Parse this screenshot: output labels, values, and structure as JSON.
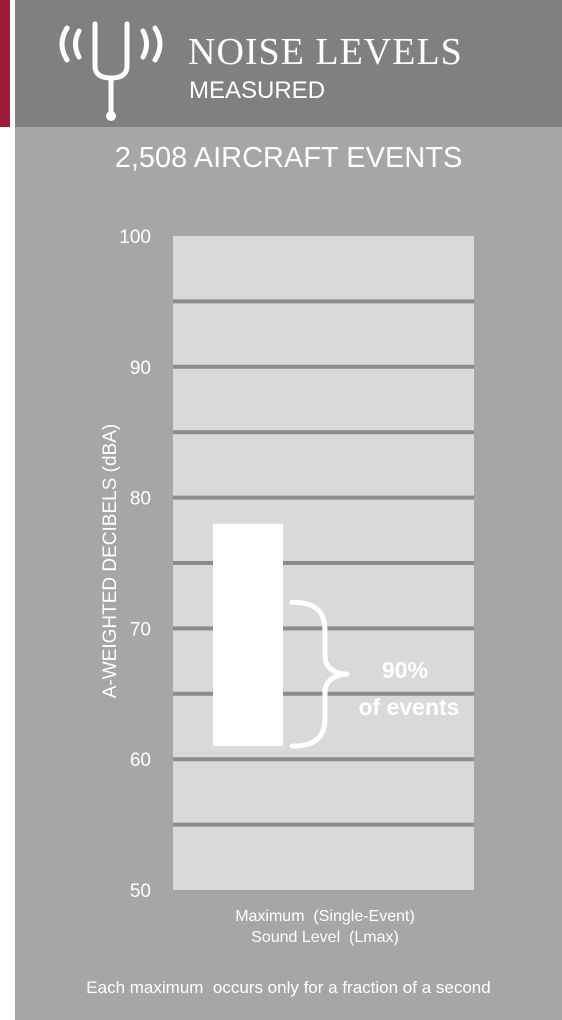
{
  "header": {
    "title": "NOISE LEVELS",
    "subtitle": "MEASURED",
    "icon": "tuning-fork-signal-icon"
  },
  "colors": {
    "accent": "#9b1b39",
    "panel": "#a6a6a6",
    "header": "#808080",
    "plot_area": "#d9d9d9",
    "gridline": "#8c8c8c",
    "bar": "#ffffff",
    "text": "#ffffff"
  },
  "chart_data": {
    "type": "bar",
    "title": "2,508 AIRCRAFT EVENTS",
    "ylabel": "A-WEIGHTED DECIBELS (dBA)",
    "xlabel_lines": [
      "Maximum  (Single-Event)",
      "Sound Level  (Lmax)"
    ],
    "ylim": [
      50,
      100
    ],
    "yticks": [
      "50",
      "60",
      "70",
      "80",
      "90",
      "100"
    ],
    "minor_gridlines": [
      55,
      65,
      75,
      85,
      95
    ],
    "grid": true,
    "categories": [
      "Maximum (Single-Event) Sound Level (Lmax)"
    ],
    "series": [
      {
        "low": 61,
        "high": 78
      }
    ],
    "annotation": {
      "line1": "90%",
      "line2": "of events",
      "range": [
        61,
        72
      ]
    }
  },
  "footnote": "Each maximum  occurs only for a fraction of a second"
}
